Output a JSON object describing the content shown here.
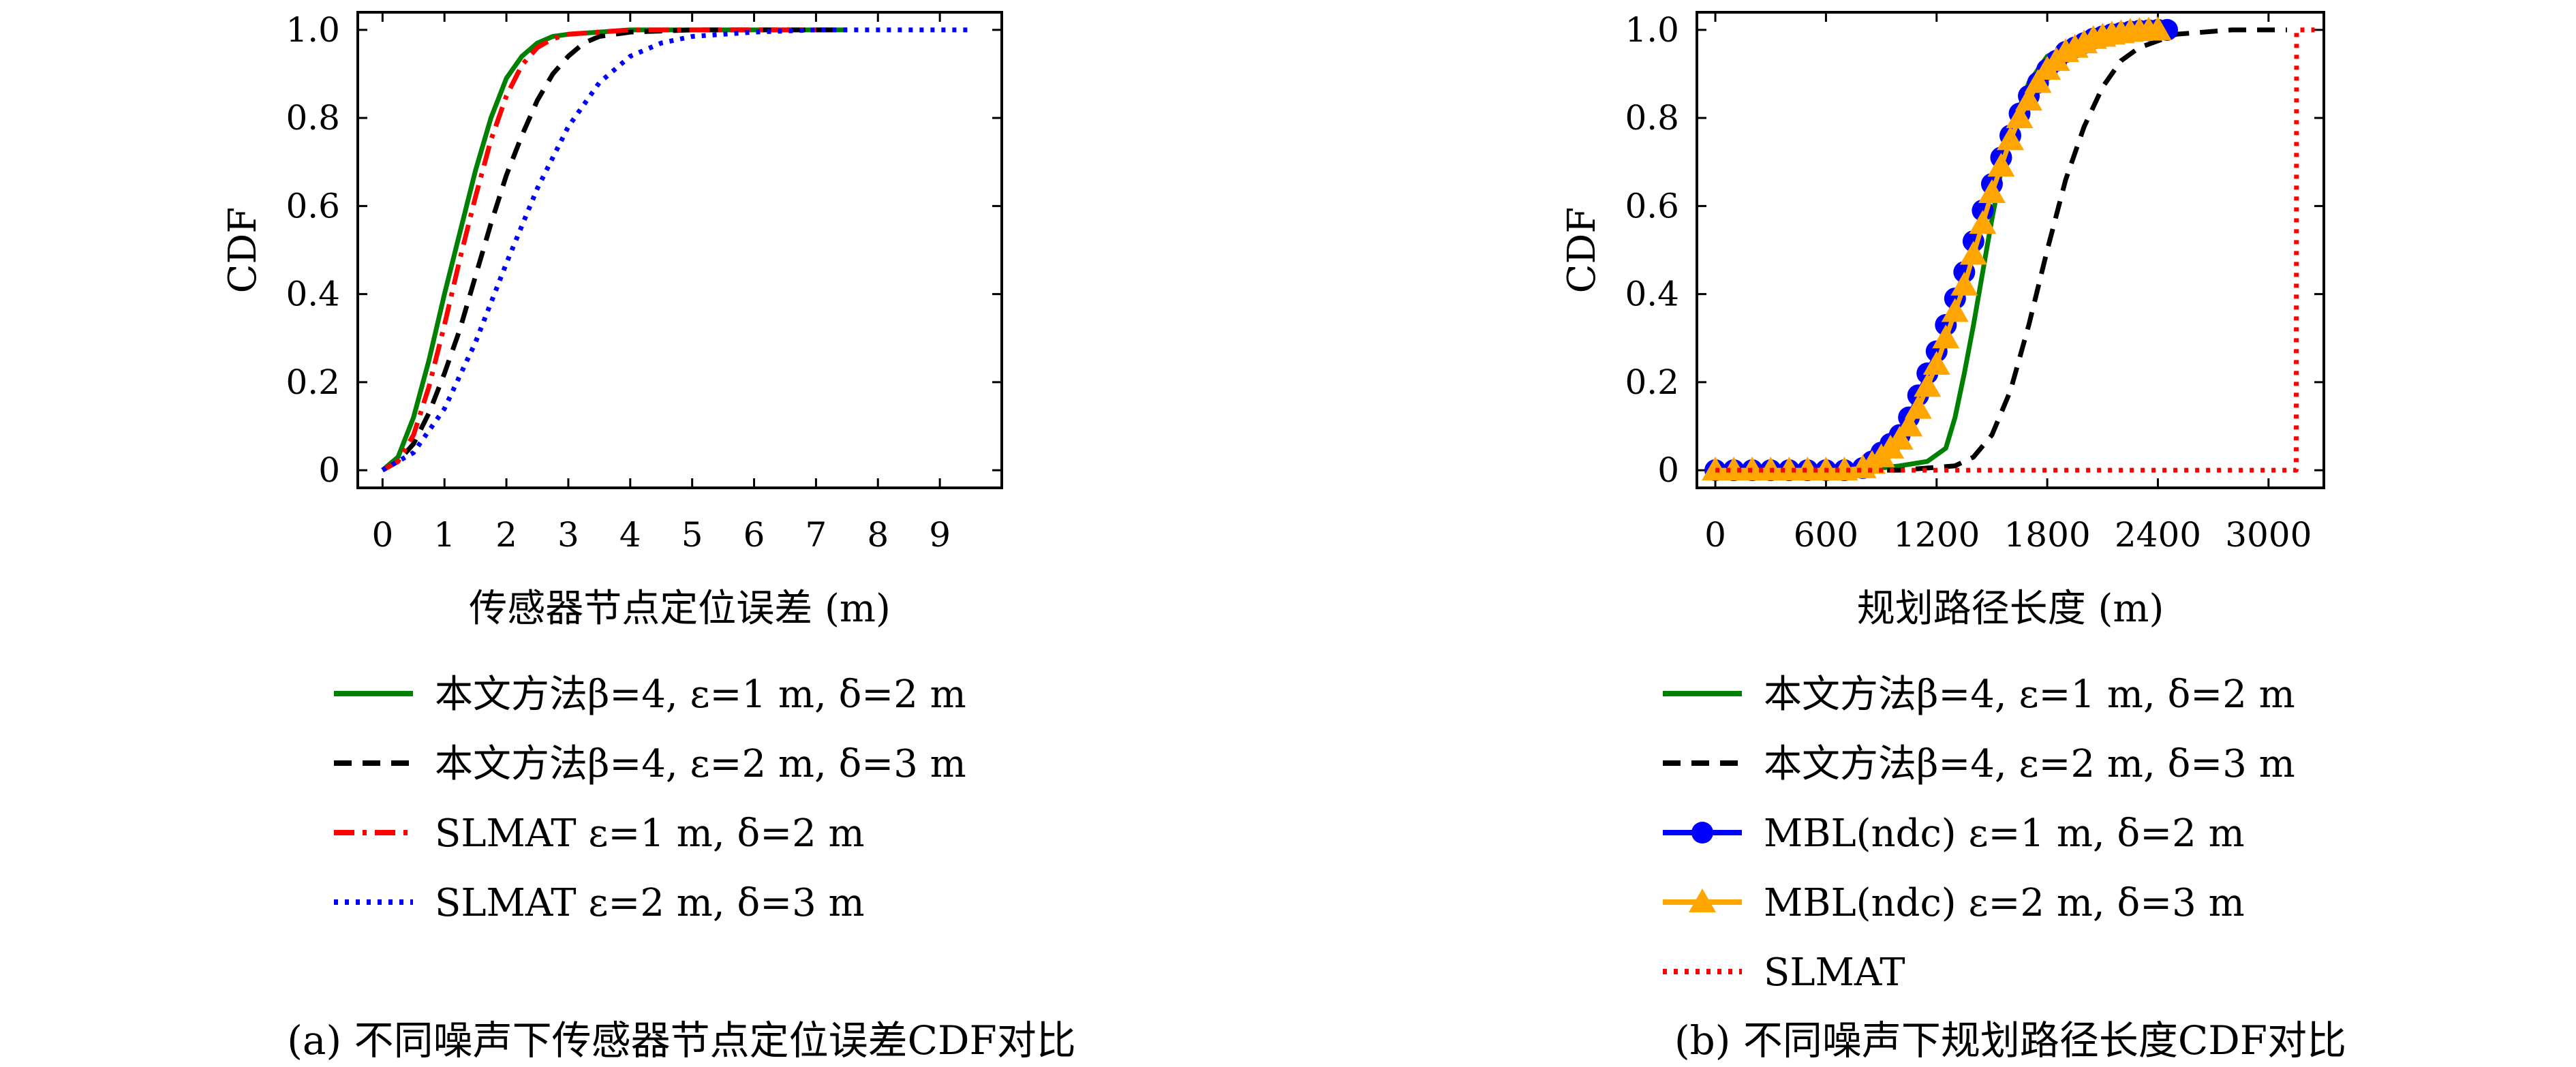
{
  "chart_data": [
    {
      "type": "line",
      "xlabel": "传感器节点定位误差 (m)",
      "ylabel": "CDF",
      "xlim": [
        -0.4,
        10.0
      ],
      "ylim": [
        -0.04,
        1.04
      ],
      "xticks": [
        0,
        1,
        2,
        3,
        4,
        5,
        6,
        7,
        8,
        9
      ],
      "yticks": [
        0,
        0.2,
        0.4,
        0.6,
        0.8,
        1.0
      ],
      "ytick_labels": [
        "0",
        "0.2",
        "0.4",
        "0.6",
        "0.8",
        "1.0"
      ],
      "grid": false,
      "legend_position": "below",
      "caption": "(a) 不同噪声下传感器节点定位误差CDF对比",
      "series": [
        {
          "name": "本文方法β=4, ε=1 m, δ=2 m",
          "color": "#008000",
          "dash": "solid",
          "marker": "none",
          "x": [
            0,
            0.25,
            0.5,
            0.75,
            1.0,
            1.25,
            1.5,
            1.75,
            2.0,
            2.25,
            2.5,
            2.75,
            3.0,
            3.5,
            4.0,
            5.0,
            6.0,
            7.0,
            7.5
          ],
          "y": [
            0,
            0.03,
            0.12,
            0.25,
            0.4,
            0.54,
            0.68,
            0.8,
            0.89,
            0.94,
            0.97,
            0.985,
            0.99,
            0.995,
            1.0,
            1.0,
            1.0,
            1.0,
            1.0
          ]
        },
        {
          "name": "本文方法β=4, ε=2 m, δ=3 m",
          "color": "#000000",
          "dash": "dashed",
          "marker": "none",
          "x": [
            0,
            0.25,
            0.5,
            0.75,
            1.0,
            1.25,
            1.5,
            1.75,
            2.0,
            2.25,
            2.5,
            2.75,
            3.0,
            3.25,
            3.5,
            4.0,
            5.0,
            6.0,
            7.0,
            7.5
          ],
          "y": [
            0,
            0.02,
            0.06,
            0.13,
            0.22,
            0.32,
            0.44,
            0.56,
            0.67,
            0.76,
            0.84,
            0.9,
            0.94,
            0.97,
            0.985,
            0.995,
            1.0,
            1.0,
            1.0,
            1.0
          ]
        },
        {
          "name": "SLMAT ε=1 m, δ=2 m",
          "color": "#ff0000",
          "dash": "dashdot",
          "marker": "none",
          "x": [
            0,
            0.25,
            0.5,
            0.75,
            1.0,
            1.25,
            1.5,
            1.75,
            2.0,
            2.25,
            2.5,
            2.75,
            3.0,
            3.5,
            4.0,
            5.0,
            6.0,
            7.0
          ],
          "y": [
            0,
            0.02,
            0.08,
            0.19,
            0.33,
            0.48,
            0.62,
            0.75,
            0.85,
            0.92,
            0.96,
            0.98,
            0.99,
            0.995,
            1.0,
            1.0,
            1.0,
            1.0
          ]
        },
        {
          "name": "SLMAT ε=2 m, δ=3 m",
          "color": "#0000ff",
          "dash": "dotted",
          "marker": "none",
          "x": [
            0,
            0.5,
            1.0,
            1.5,
            2.0,
            2.5,
            3.0,
            3.5,
            4.0,
            4.5,
            5.0,
            5.5,
            6.0,
            7.0,
            8.0,
            9.0,
            9.5
          ],
          "y": [
            0,
            0.04,
            0.14,
            0.29,
            0.47,
            0.64,
            0.78,
            0.88,
            0.94,
            0.97,
            0.985,
            0.99,
            0.995,
            1.0,
            1.0,
            1.0,
            1.0
          ]
        }
      ]
    },
    {
      "type": "line",
      "xlabel": "规划路径长度 (m)",
      "ylabel": "CDF",
      "xlim": [
        -100,
        3300
      ],
      "ylim": [
        -0.04,
        1.04
      ],
      "xticks": [
        0,
        600,
        1200,
        1800,
        2400,
        3000
      ],
      "yticks": [
        0,
        0.2,
        0.4,
        0.6,
        0.8,
        1.0
      ],
      "ytick_labels": [
        "0",
        "0.2",
        "0.4",
        "0.6",
        "0.8",
        "1.0"
      ],
      "grid": false,
      "legend_position": "below",
      "caption": "(b) 不同噪声下规划路径长度CDF对比",
      "series": [
        {
          "name": "本文方法β=4, ε=1 m, δ=2 m",
          "color": "#008000",
          "dash": "solid",
          "marker": "none",
          "x": [
            0,
            800,
            1000,
            1150,
            1250,
            1300,
            1350,
            1400,
            1450,
            1500,
            1550,
            1600,
            1700,
            1800,
            2000,
            2200,
            2400
          ],
          "y": [
            0,
            0,
            0.01,
            0.02,
            0.05,
            0.12,
            0.22,
            0.33,
            0.45,
            0.57,
            0.68,
            0.77,
            0.88,
            0.94,
            0.98,
            0.995,
            1.0
          ]
        },
        {
          "name": "本文方法β=4, ε=2 m, δ=3 m",
          "color": "#000000",
          "dash": "dashed",
          "marker": "none",
          "x": [
            0,
            1000,
            1300,
            1400,
            1500,
            1600,
            1700,
            1800,
            1900,
            2000,
            2100,
            2200,
            2300,
            2500,
            2800,
            3100
          ],
          "y": [
            0,
            0,
            0.01,
            0.03,
            0.08,
            0.18,
            0.33,
            0.5,
            0.66,
            0.78,
            0.87,
            0.93,
            0.96,
            0.99,
            1.0,
            1.0
          ]
        },
        {
          "name": "MBL(ndc) ε=1 m, δ=2 m",
          "color": "#0000ff",
          "dash": "solid",
          "marker": "circle",
          "x": [
            0,
            100,
            200,
            300,
            400,
            500,
            600,
            700,
            800,
            850,
            900,
            950,
            1000,
            1050,
            1100,
            1150,
            1200,
            1250,
            1300,
            1350,
            1400,
            1450,
            1500,
            1550,
            1600,
            1650,
            1700,
            1750,
            1800,
            1850,
            1900,
            1950,
            2000,
            2050,
            2100,
            2150,
            2200,
            2250,
            2300,
            2350,
            2400,
            2450
          ],
          "y": [
            0,
            0,
            0,
            0,
            0,
            0,
            0,
            0,
            0.005,
            0.02,
            0.04,
            0.06,
            0.08,
            0.12,
            0.17,
            0.22,
            0.27,
            0.33,
            0.39,
            0.45,
            0.52,
            0.59,
            0.65,
            0.71,
            0.76,
            0.81,
            0.85,
            0.88,
            0.91,
            0.93,
            0.95,
            0.96,
            0.97,
            0.98,
            0.985,
            0.99,
            0.993,
            0.996,
            0.998,
            0.999,
            1.0,
            1.0
          ]
        },
        {
          "name": "MBL(ndc) ε=2 m, δ=3 m",
          "color": "#ffa500",
          "dash": "solid",
          "marker": "triangle",
          "x": [
            0,
            100,
            200,
            300,
            400,
            500,
            600,
            700,
            800,
            850,
            900,
            950,
            1000,
            1050,
            1100,
            1150,
            1200,
            1250,
            1300,
            1350,
            1400,
            1450,
            1500,
            1550,
            1600,
            1650,
            1700,
            1750,
            1800,
            1850,
            1900,
            1950,
            2000,
            2050,
            2100,
            2150,
            2200,
            2250,
            2300,
            2350,
            2400
          ],
          "y": [
            0,
            0,
            0,
            0,
            0,
            0,
            0,
            0,
            0.005,
            0.015,
            0.03,
            0.05,
            0.07,
            0.1,
            0.14,
            0.19,
            0.24,
            0.3,
            0.36,
            0.42,
            0.49,
            0.56,
            0.63,
            0.69,
            0.75,
            0.8,
            0.84,
            0.88,
            0.91,
            0.93,
            0.95,
            0.96,
            0.97,
            0.98,
            0.985,
            0.99,
            0.993,
            0.996,
            0.998,
            0.999,
            1.0
          ]
        },
        {
          "name": "SLMAT",
          "color": "#ff0000",
          "dash": "dotted",
          "marker": "none",
          "x": [
            0,
            3150,
            3152,
            3250
          ],
          "y": [
            0,
            0,
            1.0,
            1.0
          ]
        }
      ]
    }
  ]
}
